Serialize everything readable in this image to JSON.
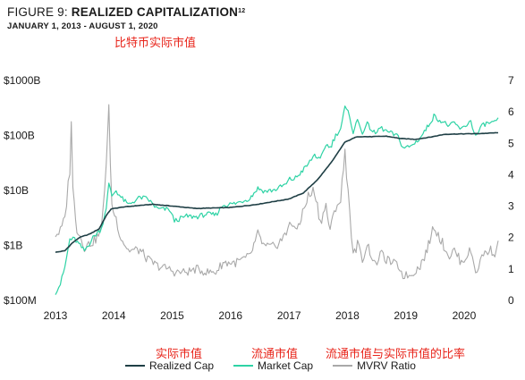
{
  "header": {
    "figure_label": "FIGURE 9:",
    "figure_name": "REALIZED CAPITALIZATION",
    "superscript": "12",
    "subtitle": "JANUARY 1, 2013 - AUGUST 1, 2020"
  },
  "annotations": {
    "title_cn": "比特币实际市值",
    "realized_cn": "实际市值",
    "market_cn": "流通市值",
    "ratio_cn": "流通市值与实际市值的比率"
  },
  "colors": {
    "realized": "#1f3f45",
    "market": "#2ed3a5",
    "mvrv": "#a9a9a9",
    "annotation": "#e8251b",
    "axis": "#1a1a1a"
  },
  "chart_data": {
    "type": "line",
    "x_range": [
      "2013-01-01",
      "2020-08-01"
    ],
    "x_ticks": [
      "2013",
      "2014",
      "2015",
      "2016",
      "2017",
      "2018",
      "2019",
      "2020"
    ],
    "left_axis": {
      "scale": "log",
      "ylim": [
        100000000,
        1000000000000
      ],
      "ticks": [
        {
          "label": "$1000B",
          "value": 1000000000000
        },
        {
          "label": "$100B",
          "value": 100000000000
        },
        {
          "label": "$10B",
          "value": 10000000000
        },
        {
          "label": "$1B",
          "value": 1000000000
        },
        {
          "label": "$100M",
          "value": 100000000
        }
      ]
    },
    "right_axis": {
      "scale": "linear",
      "ylim": [
        0,
        7
      ],
      "ticks": [
        7,
        6,
        5,
        4,
        3,
        2,
        1,
        0
      ]
    },
    "grid": false,
    "legend_position": "bottom",
    "series": [
      {
        "name": "Realized Cap",
        "axis": "left",
        "points": [
          [
            "2013-01-01",
            750000000.0
          ],
          [
            "2013-03-01",
            800000000.0
          ],
          [
            "2013-04-15",
            1100000000.0
          ],
          [
            "2013-06-01",
            1400000000.0
          ],
          [
            "2013-08-01",
            1600000000.0
          ],
          [
            "2013-10-01",
            2000000000.0
          ],
          [
            "2013-11-15",
            3500000000.0
          ],
          [
            "2013-12-15",
            4600000000.0
          ],
          [
            "2014-03-01",
            5000000000.0
          ],
          [
            "2014-06-01",
            5300000000.0
          ],
          [
            "2014-09-01",
            5600000000.0
          ],
          [
            "2015-01-01",
            5200000000.0
          ],
          [
            "2015-06-01",
            4700000000.0
          ],
          [
            "2016-01-01",
            4900000000.0
          ],
          [
            "2016-06-01",
            5500000000.0
          ],
          [
            "2017-01-01",
            7000000000.0
          ],
          [
            "2017-04-01",
            9000000000.0
          ],
          [
            "2017-07-01",
            16000000000.0
          ],
          [
            "2017-10-01",
            35000000000.0
          ],
          [
            "2017-12-15",
            75000000000.0
          ],
          [
            "2018-03-01",
            95000000000.0
          ],
          [
            "2018-06-01",
            95000000000.0
          ],
          [
            "2018-09-01",
            97000000000.0
          ],
          [
            "2018-12-01",
            88000000000.0
          ],
          [
            "2019-03-01",
            85000000000.0
          ],
          [
            "2019-06-01",
            93000000000.0
          ],
          [
            "2019-09-01",
            105000000000.0
          ],
          [
            "2020-01-01",
            107000000000.0
          ],
          [
            "2020-04-01",
            108000000000.0
          ],
          [
            "2020-08-01",
            112000000000.0
          ]
        ]
      },
      {
        "name": "Market Cap",
        "axis": "left",
        "points": [
          [
            "2013-01-01",
            140000000.0
          ],
          [
            "2013-02-01",
            200000000.0
          ],
          [
            "2013-03-01",
            400000000.0
          ],
          [
            "2013-04-01",
            1300000000.0
          ],
          [
            "2013-05-01",
            1300000000.0
          ],
          [
            "2013-07-01",
            800000000.0
          ],
          [
            "2013-09-01",
            1500000000.0
          ],
          [
            "2013-10-15",
            2000000000.0
          ],
          [
            "2013-11-15",
            5000000000.0
          ],
          [
            "2013-12-01",
            13000000000.0
          ],
          [
            "2013-12-20",
            8000000000.0
          ],
          [
            "2014-01-15",
            10000000000.0
          ],
          [
            "2014-02-15",
            7500000000.0
          ],
          [
            "2014-04-01",
            5500000000.0
          ],
          [
            "2014-06-15",
            7500000000.0
          ],
          [
            "2014-08-01",
            7000000000.0
          ],
          [
            "2014-10-01",
            4600000000.0
          ],
          [
            "2014-12-15",
            4500000000.0
          ],
          [
            "2015-01-15",
            2800000000.0
          ],
          [
            "2015-04-01",
            3400000000.0
          ],
          [
            "2015-06-01",
            3300000000.0
          ],
          [
            "2015-08-01",
            3700000000.0
          ],
          [
            "2015-10-01",
            3600000000.0
          ],
          [
            "2015-11-15",
            5400000000.0
          ],
          [
            "2016-02-01",
            5800000000.0
          ],
          [
            "2016-05-01",
            7200000000.0
          ],
          [
            "2016-06-20",
            11000000000.0
          ],
          [
            "2016-08-01",
            9600000000.0
          ],
          [
            "2016-10-01",
            10200000000.0
          ],
          [
            "2016-12-15",
            13000000000.0
          ],
          [
            "2017-01-05",
            16000000000.0
          ],
          [
            "2017-02-01",
            16000000000.0
          ],
          [
            "2017-03-01",
            19000000000.0
          ],
          [
            "2017-05-01",
            30000000000.0
          ],
          [
            "2017-06-10",
            45000000000.0
          ],
          [
            "2017-07-15",
            35000000000.0
          ],
          [
            "2017-08-20",
            70000000000.0
          ],
          [
            "2017-09-15",
            60000000000.0
          ],
          [
            "2017-10-20",
            100000000000.0
          ],
          [
            "2017-11-20",
            135000000000.0
          ],
          [
            "2017-12-17",
            320000000000.0
          ],
          [
            "2018-01-15",
            230000000000.0
          ],
          [
            "2018-02-06",
            115000000000.0
          ],
          [
            "2018-03-05",
            190000000000.0
          ],
          [
            "2018-04-05",
            115000000000.0
          ],
          [
            "2018-05-05",
            160000000000.0
          ],
          [
            "2018-06-25",
            105000000000.0
          ],
          [
            "2018-07-25",
            140000000000.0
          ],
          [
            "2018-09-01",
            120000000000.0
          ],
          [
            "2018-11-15",
            95000000000.0
          ],
          [
            "2018-12-15",
            60000000000.0
          ],
          [
            "2019-02-01",
            63000000000.0
          ],
          [
            "2019-04-01",
            90000000000.0
          ],
          [
            "2019-05-15",
            140000000000.0
          ],
          [
            "2019-06-26",
            225000000000.0
          ],
          [
            "2019-08-01",
            190000000000.0
          ],
          [
            "2019-10-01",
            150000000000.0
          ],
          [
            "2019-11-01",
            165000000000.0
          ],
          [
            "2019-12-15",
            128000000000.0
          ],
          [
            "2020-02-12",
            185000000000.0
          ],
          [
            "2020-03-13",
            95000000000.0
          ],
          [
            "2020-04-01",
            118000000000.0
          ],
          [
            "2020-05-01",
            160000000000.0
          ],
          [
            "2020-06-15",
            170000000000.0
          ],
          [
            "2020-07-20",
            170000000000.0
          ],
          [
            "2020-08-01",
            210000000000.0
          ]
        ]
      },
      {
        "name": "MVRV Ratio",
        "axis": "right",
        "points": [
          [
            "2013-01-01",
            2.1
          ],
          [
            "2013-02-01",
            2.2
          ],
          [
            "2013-03-01",
            2.6
          ],
          [
            "2013-04-01",
            4.2
          ],
          [
            "2013-04-10",
            5.8
          ],
          [
            "2013-04-20",
            3.5
          ],
          [
            "2013-05-15",
            2.3
          ],
          [
            "2013-07-01",
            1.7
          ],
          [
            "2013-09-01",
            1.9
          ],
          [
            "2013-10-15",
            2.2
          ],
          [
            "2013-11-15",
            4.4
          ],
          [
            "2013-12-01",
            6.0
          ],
          [
            "2013-12-20",
            3.0
          ],
          [
            "2014-01-15",
            2.6
          ],
          [
            "2014-02-15",
            2.0
          ],
          [
            "2014-04-01",
            1.6
          ],
          [
            "2014-06-15",
            1.6
          ],
          [
            "2014-08-01",
            1.3
          ],
          [
            "2014-10-01",
            1.1
          ],
          [
            "2014-12-15",
            1.0
          ],
          [
            "2015-01-15",
            0.9
          ],
          [
            "2015-04-01",
            0.9
          ],
          [
            "2015-06-01",
            1.0
          ],
          [
            "2015-08-01",
            0.9
          ],
          [
            "2015-10-01",
            0.9
          ],
          [
            "2015-11-15",
            1.2
          ],
          [
            "2016-02-01",
            1.2
          ],
          [
            "2016-05-01",
            1.4
          ],
          [
            "2016-06-20",
            2.1
          ],
          [
            "2016-08-01",
            1.7
          ],
          [
            "2016-10-01",
            1.7
          ],
          [
            "2016-12-15",
            2.1
          ],
          [
            "2017-01-05",
            2.6
          ],
          [
            "2017-02-01",
            2.2
          ],
          [
            "2017-03-01",
            2.4
          ],
          [
            "2017-05-01",
            3.3
          ],
          [
            "2017-06-10",
            3.5
          ],
          [
            "2017-07-15",
            2.5
          ],
          [
            "2017-08-20",
            3.0
          ],
          [
            "2017-09-15",
            2.2
          ],
          [
            "2017-10-20",
            3.0
          ],
          [
            "2017-11-20",
            3.2
          ],
          [
            "2017-12-17",
            4.7
          ],
          [
            "2018-01-15",
            2.9
          ],
          [
            "2018-02-06",
            1.4
          ],
          [
            "2018-03-05",
            1.8
          ],
          [
            "2018-04-05",
            1.3
          ],
          [
            "2018-05-05",
            1.8
          ],
          [
            "2018-06-25",
            1.1
          ],
          [
            "2018-07-25",
            1.5
          ],
          [
            "2018-09-01",
            1.3
          ],
          [
            "2018-11-15",
            1.1
          ],
          [
            "2018-12-15",
            0.8
          ],
          [
            "2019-02-01",
            0.8
          ],
          [
            "2019-04-01",
            1.1
          ],
          [
            "2019-05-15",
            1.6
          ],
          [
            "2019-06-26",
            2.4
          ],
          [
            "2019-08-01",
            2.0
          ],
          [
            "2019-10-01",
            1.4
          ],
          [
            "2019-11-01",
            1.6
          ],
          [
            "2019-12-15",
            1.2
          ],
          [
            "2020-02-12",
            1.6
          ],
          [
            "2020-03-13",
            0.9
          ],
          [
            "2020-04-01",
            1.1
          ],
          [
            "2020-05-01",
            1.5
          ],
          [
            "2020-06-15",
            1.6
          ],
          [
            "2020-07-20",
            1.5
          ],
          [
            "2020-08-01",
            1.9
          ]
        ]
      }
    ]
  }
}
